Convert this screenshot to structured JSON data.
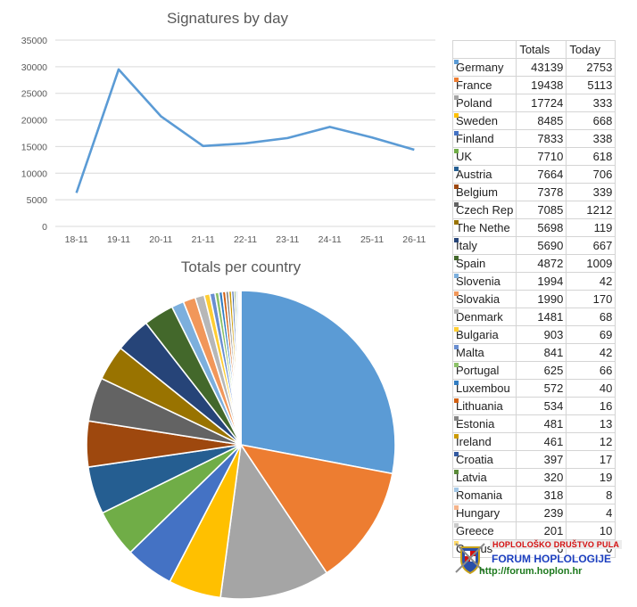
{
  "chart_data": [
    {
      "type": "line",
      "title": "Signatures by day",
      "x": [
        "18-11",
        "19-11",
        "20-11",
        "21-11",
        "22-11",
        "23-11",
        "24-11",
        "25-11",
        "26-11"
      ],
      "series": [
        {
          "values": [
            6300,
            29500,
            20700,
            15100,
            15600,
            16600,
            18700,
            16700,
            14400
          ]
        }
      ],
      "ylim": [
        0,
        35000
      ],
      "yticks": [
        0,
        5000,
        10000,
        15000,
        20000,
        25000,
        30000,
        35000
      ],
      "grid": true,
      "color": "#5b9bd5"
    },
    {
      "type": "pie",
      "title": "Totals per country",
      "labels": [
        "Germany",
        "France",
        "Poland",
        "Sweden",
        "Finland",
        "UK",
        "Austria",
        "Belgium",
        "Czech Rep",
        "The Nethe",
        "Italy",
        "Spain",
        "Slovenia",
        "Slovakia",
        "Denmark",
        "Bulgaria",
        "Malta",
        "Portugal",
        "Luxembou",
        "Lithuania",
        "Estonia",
        "Ireland",
        "Croatia",
        "Latvia",
        "Romania",
        "Hungary",
        "Greece",
        "Cyprus"
      ],
      "values": [
        43139,
        19438,
        17724,
        8485,
        7833,
        7710,
        7664,
        7378,
        7085,
        5698,
        5690,
        4872,
        1994,
        1990,
        1481,
        903,
        841,
        625,
        572,
        534,
        481,
        461,
        397,
        320,
        318,
        239,
        201,
        6
      ],
      "colors": [
        "#5b9bd5",
        "#ed7d31",
        "#a5a5a5",
        "#ffc000",
        "#4472c4",
        "#70ad47",
        "#255e91",
        "#9e480e",
        "#636363",
        "#997300",
        "#264478",
        "#43682b",
        "#7cafdd",
        "#f1975a",
        "#b7b7b7",
        "#ffcd33",
        "#698ed0",
        "#8cc168",
        "#327dc2",
        "#d26012",
        "#848484",
        "#cc9a00",
        "#335aa1",
        "#5a8a39",
        "#a3c7e6",
        "#f5b48b",
        "#c9c9c9",
        "#ffd966"
      ]
    },
    {
      "type": "table",
      "headers": [
        "",
        "Totals",
        "Today"
      ],
      "rows": [
        [
          "Germany",
          "43139",
          "2753"
        ],
        [
          "France",
          "19438",
          "5113"
        ],
        [
          "Poland",
          "17724",
          "333"
        ],
        [
          "Sweden",
          "8485",
          "668"
        ],
        [
          "Finland",
          "7833",
          "338"
        ],
        [
          "UK",
          "7710",
          "618"
        ],
        [
          "Austria",
          "7664",
          "706"
        ],
        [
          "Belgium",
          "7378",
          "339"
        ],
        [
          "Czech Rep",
          "7085",
          "1212"
        ],
        [
          "The Nethe",
          "5698",
          "119"
        ],
        [
          "Italy",
          "5690",
          "667"
        ],
        [
          "Spain",
          "4872",
          "1009"
        ],
        [
          "Slovenia",
          "1994",
          "42"
        ],
        [
          "Slovakia",
          "1990",
          "170"
        ],
        [
          "Denmark",
          "1481",
          "68"
        ],
        [
          "Bulgaria",
          "903",
          "69"
        ],
        [
          "Malta",
          "841",
          "42"
        ],
        [
          "Portugal",
          "625",
          "66"
        ],
        [
          "Luxembou",
          "572",
          "40"
        ],
        [
          "Lithuania",
          "534",
          "16"
        ],
        [
          "Estonia",
          "481",
          "13"
        ],
        [
          "Ireland",
          "461",
          "12"
        ],
        [
          "Croatia",
          "397",
          "17"
        ],
        [
          "Latvia",
          "320",
          "19"
        ],
        [
          "Romania",
          "318",
          "8"
        ],
        [
          "Hungary",
          "239",
          "4"
        ],
        [
          "Greece",
          "201",
          "10"
        ],
        [
          "Cyprus",
          "6",
          "0"
        ]
      ]
    }
  ],
  "watermark": {
    "line1": "HOPLOLOŠKO DRUŠTVO PULA",
    "line2": "FORUM HOPLOLOGIJE",
    "line3": "http://forum.hoplon.hr",
    "logo_icon": "shield-crest-icon"
  }
}
